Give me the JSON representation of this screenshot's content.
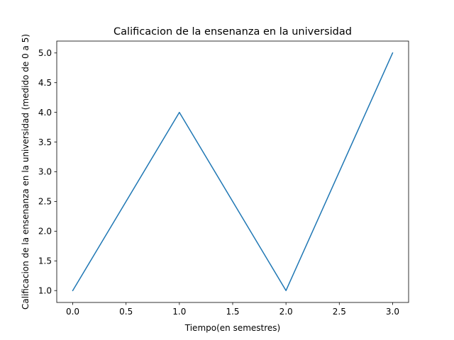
{
  "chart_data": {
    "type": "line",
    "title": "Calificacion de la ensenanza en la universidad",
    "xlabel": "Tiempo(en semestres)",
    "ylabel": "Calificacion de la ensenanza en la universidad (medido de 0 a 5)",
    "x": [
      0,
      1,
      2,
      3
    ],
    "series": [
      {
        "values": [
          1,
          4,
          1,
          5
        ],
        "color": "#1f77b4"
      }
    ],
    "xlim": [
      -0.15,
      3.15
    ],
    "ylim": [
      0.8,
      5.2
    ],
    "xticks": [
      0.0,
      0.5,
      1.0,
      1.5,
      2.0,
      2.5,
      3.0
    ],
    "xtick_labels": [
      "0.0",
      "0.5",
      "1.0",
      "1.5",
      "2.0",
      "2.5",
      "3.0"
    ],
    "yticks": [
      1.0,
      1.5,
      2.0,
      2.5,
      3.0,
      3.5,
      4.0,
      4.5,
      5.0
    ],
    "ytick_labels": [
      "1.0",
      "1.5",
      "2.0",
      "2.5",
      "3.0",
      "3.5",
      "4.0",
      "4.5",
      "5.0"
    ],
    "grid": false,
    "legend": false
  }
}
